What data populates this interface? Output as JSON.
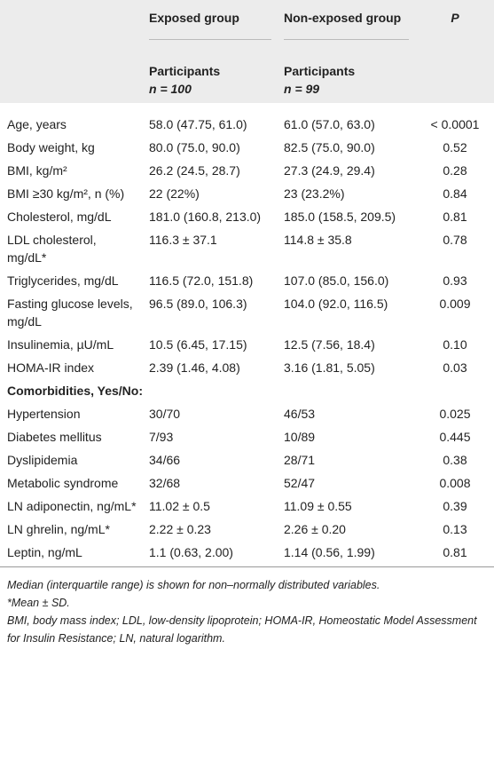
{
  "header": {
    "exposed": {
      "title": "Exposed group",
      "sub": "Participants",
      "n": "n = 100"
    },
    "non_exposed": {
      "title": "Non-exposed group",
      "sub": "Participants",
      "n": "n = 99"
    },
    "p": "P"
  },
  "table": {
    "rows": [
      [
        "Age, years",
        "58.0 (47.75, 61.0)",
        "61.0 (57.0, 63.0)",
        "< 0.0001"
      ],
      [
        "Body weight, kg",
        "80.0 (75.0, 90.0)",
        "82.5 (75.0, 90.0)",
        "0.52"
      ],
      [
        "BMI, kg/m²",
        "26.2 (24.5, 28.7)",
        "27.3 (24.9, 29.4)",
        "0.28"
      ],
      [
        "BMI ≥30 kg/m², n (%)",
        "22 (22%)",
        "23 (23.2%)",
        "0.84"
      ],
      [
        "Cholesterol, mg/dL",
        "181.0 (160.8, 213.0)",
        "185.0 (158.5, 209.5)",
        "0.81"
      ],
      [
        "LDL cholesterol, mg/dL*",
        "116.3 ± 37.1",
        "114.8 ± 35.8",
        "0.78"
      ],
      [
        "Triglycerides, mg/dL",
        "116.5 (72.0, 151.8)",
        "107.0 (85.0, 156.0)",
        "0.93"
      ],
      [
        "Fasting glucose levels, mg/dL",
        "96.5 (89.0, 106.3)",
        "104.0 (92.0, 116.5)",
        "0.009"
      ],
      [
        "Insulinemia, µU/mL",
        "10.5 (6.45, 17.15)",
        "12.5 (7.56, 18.4)",
        "0.10"
      ],
      [
        "HOMA-IR index",
        "2.39 (1.46, 4.08)",
        "3.16 (1.81, 5.05)",
        "0.03"
      ],
      [
        "Comorbidities, Yes/No:"
      ],
      [
        "Hypertension",
        "30/70",
        "46/53",
        "0.025"
      ],
      [
        "Diabetes mellitus",
        "7/93",
        "10/89",
        "0.445"
      ],
      [
        "Dyslipidemia",
        "34/66",
        "28/71",
        "0.38"
      ],
      [
        "Metabolic syndrome",
        "32/68",
        "52/47",
        "0.008"
      ],
      [
        "LN adiponectin, ng/mL*",
        "11.02 ± 0.5",
        "11.09 ± 0.55",
        "0.39"
      ],
      [
        "LN ghrelin, ng/mL*",
        "2.22 ± 0.23",
        "2.26 ± 0.20",
        "0.13"
      ],
      [
        "Leptin, ng/mL",
        "1.1 (0.63, 2.00)",
        "1.14 (0.56, 1.99)",
        "0.81"
      ]
    ]
  },
  "footnotes": [
    "Median (interquartile range) is shown for non–normally distributed variables.",
    "*Mean ± SD.",
    "BMI, body mass index; LDL, low-density lipoprotein; HOMA-IR, Homeostatic Model Assessment for Insulin Resistance; LN, natural logarithm."
  ]
}
